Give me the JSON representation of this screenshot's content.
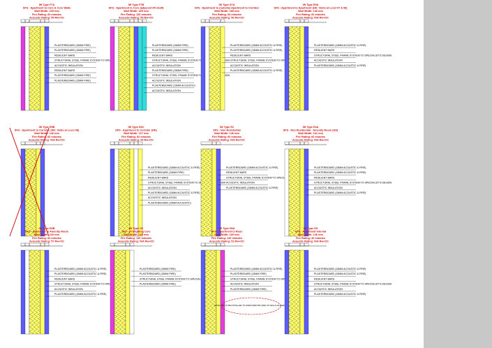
{
  "sheet": {
    "panels": [
      {
        "title": [
          "IW Type F7A",
          "SFS - Apartment to Core & Core Walls",
          "Wall Width: 225 mm",
          "Fire Rating: 60 minutes",
          "Acoustic Rating: 55 Rw+Ctr"
        ],
        "layers": [
          "#e33be3",
          "#ffffff",
          "#ffff66",
          "#ffff66",
          "#5b5bff"
        ],
        "specs": [
          "PLASTERBOARD (15MM FIRE)",
          "PLASTERBOARD (15MM FIRE)",
          "RESILIENT BARS",
          "STRUCTURAL STEEL FRAME SYSTEM TO SPECIALIST'S DESIGN",
          "ACOUSTIC INSULATION",
          "RESILIENT BARS",
          "PLASTERBOARD (15MM FIRE)",
          "PLASTERBOARD (15MM FIRE)"
        ]
      },
      {
        "title": [
          "IW Type F7B",
          "SFS - Apartment to Core (adjacent lift shaft)",
          "Wall Width: 325 mm",
          "Fire Rating: 120 minutes",
          "Acoustic Rating: 55 Rw+Ctr"
        ],
        "layers": [
          "#e33be3",
          "#ffffff",
          "#ffff66",
          "#ffff66",
          "#5b5bff",
          "#33dddd",
          "#33dddd"
        ],
        "specs": [
          "PLASTERBOARD (15MM FIRE)",
          "PLASTERBOARD (15MM FIRE)",
          "RESILIENT BARS",
          "STRUCTURAL STEEL FRAME SYSTEM TO SPECIALIST'S DESIGN",
          "ACOUSTIC INSULATION",
          "PLASTERBOARD (15MM FIRE)",
          "STRUCTURAL STEEL FRAME SYSTEM TO SPECIALIST'S DESIGN",
          "ACOUSTIC INSULATION",
          "PLASTERBOARD (15MM ACOUSTIC)",
          "ACOUSTIC INSULATION"
        ]
      },
      {
        "title": [
          "IW Type D7A",
          "SFS - Apartment to (outside) Apartment to Corridor",
          "Wall Width: 185 mm",
          "Fire Rating: 60 minutes",
          "Acoustic Rating: 56 Rw+Ctr"
        ],
        "layers": [
          "#5b5bff",
          "#ffffff",
          "#ffff66",
          "#ffff66"
        ],
        "specs": [
          "PLASTERBOARD (15MM ACOUSTIC & FIRE)",
          "PLASTERBOARD (15MM ACOUSTIC & FIRE)",
          "RESILIENT BARS",
          "STRUCTURAL STEEL FRAME SYSTEM TO SPECIALIST'S DESIGN",
          "ACOUSTIC INSULATION",
          "PLASTERBOARD (15MM ACOUSTIC & FIRE)"
        ]
      },
      {
        "title": [
          "IW Type E5A",
          "SFS - Apartment to Apartment (HD: Voids at Level 07 & 08)",
          "Wall Width: 146 mm",
          "Fire Rating: 60 minutes",
          "Acoustic Rating: N/A Rw+Ctr"
        ],
        "layers": [
          "#5b5bff",
          "#ffff66",
          "#ffff66",
          "#5b5bff"
        ],
        "specs": [
          "PLASTERBOARD (15MM ACOUSTIC & FIRE)",
          "RESILIENT BARS",
          "STRUCTURAL STEEL FRAME SYSTEM TO SPECIALIST'S DESIGN",
          "ACOUSTIC INSULATION",
          "PLASTERBOARD (15MM ACOUSTIC & FIRE)"
        ]
      },
      {
        "title": [
          "IW Type E5B",
          "SFS - Apartment to Corridor (HD: Voids at Level 08)",
          "Wall Width: 146 mm",
          "Fire Rating: 60 minutes",
          "Acoustic Rating: N/A Rw+Ctr"
        ],
        "layers": [
          "#5b5bff",
          "#ffff66",
          "#ffff66",
          "#5b5bff"
        ],
        "specs": [],
        "struck": true
      },
      {
        "title": [
          "IW Type D6C",
          "SFS - Apartment to Corridor (HD)",
          "Wall Width: 217 mm",
          "Fire Rating: 60 minutes",
          "Acoustic Rating: 54 Rw+Ctr"
        ],
        "layers": [
          "#5b5bff",
          "#ffffff",
          "#ffff66",
          "#ffff66",
          "#ffffff",
          "#ffff66"
        ],
        "specs": [
          "PLASTERBOARD (15MM ACOUSTIC & FIRE)",
          "PLASTERBOARD (15MM FIRE)",
          "RESILIENT BARS",
          "STRUCTURAL STEEL FRAME SYSTEM TO SPECIALIST'S DESIGN",
          "ACOUSTIC INSULATION",
          "PLASTERBOARD (15MM ACOUSTIC & FIRE)",
          "ACOUSTIC INSULATION",
          "PLASTERBOARD (15MM ACOUSTIC)"
        ]
      },
      {
        "title": [
          "IW Type E2",
          "SFS - Non Residential",
          "Wall Width: 146 mm",
          "Fire Rating: 60 minutes",
          "Acoustic Rating: N/A Rw+Ctr"
        ],
        "layers": [
          "#ffff66",
          "#ffff66",
          "#5b5bff"
        ],
        "specs": [
          "PLASTERBOARD (15MM ACOUSTIC & FIRE)",
          "RESILIENT BARS",
          "STRUCTURAL STEEL FRAME SYSTEM TO SPECIALIST'S DESIGN",
          "ACOUSTIC INSULATION",
          "PLASTERBOARD (15MM ACOUSTIC & FIRE)"
        ]
      },
      {
        "title": [
          "IW Type E4A",
          "SFS - Non Residential - Amenity Room (UH)",
          "Wall Width: 161 mm",
          "Fire Rating: 60 minutes",
          "Acoustic Rating: N/A Rw+Ctr"
        ],
        "layers": [
          "#ffffff",
          "#ffff66",
          "#ffff66",
          "#5b5bff"
        ],
        "specs": [
          "PLASTERBOARD (15MM ACOUSTIC & FIRE)",
          "PLASTERBOARD (15MM ACOUSTIC & FIRE)",
          "RESILIENT BARS",
          "STRUCTURAL STEEL FRAME SYSTEM TO SPECIALIST'S DESIGN",
          "ACOUSTIC INSULATION",
          "PLASTERBOARD (15MM ACOUSTIC & FIRE)"
        ]
      },
      {
        "title": [
          "IW Type D6B",
          "SFS - Apartment to Amenity Room",
          "Wall Width: 225 mm",
          "Fire Rating: 60 minutes",
          "Acoustic Rating: 57 Rw+Ctr"
        ],
        "layers": [
          "#5b5bff",
          "#ffffff",
          "#ffff66",
          "#ffff66",
          "#5b5bff"
        ],
        "specs": [
          "PLASTERBOARD (15MM ACOUSTIC & FIRE)",
          "PLASTERBOARD (15MM ACOUSTIC & FIRE)",
          "RESILIENT BARS",
          "STRUCTURAL STEEL FRAME SYSTEM TO SPECIALIST'S DESIGN",
          "ACOUSTIC INSULATION",
          "PLASTERBOARD (15MM ACOUSTIC & FIRE)"
        ]
      },
      {
        "title": [
          "IW Type G6",
          "SFS - Firefighting Core",
          "Wall Width: 165 mm",
          "Fire Rating: 120 minutes",
          "Acoustic Rating: N/A Rw+Ctr"
        ],
        "layers": [
          "#e33be3",
          "#ffff66",
          "#ffff66",
          "#ffffff"
        ],
        "specs": [
          "PLASTERBOARD (15MM FIRE)",
          "PLASTERBOARD (15MM FIRE)",
          "STRUCTURAL STEEL FRAME SYSTEM TO SPECIALIST'S DESIGN",
          "PLASTERBOARD (15MM FIRE)"
        ]
      },
      {
        "title": [
          "IW Type H6A",
          "SFS - Apartment to Riser",
          "Wall Width: 165 mm",
          "Fire Rating: 120 minutes",
          "Acoustic Rating: 51 Rw+Ctr"
        ],
        "layers": [
          "#5b5bff",
          "#ffff66",
          "#ffff66",
          "#e33be3"
        ],
        "specs": [
          "PLASTERBOARD (15MM ACOUSTIC & FIRE)",
          "PLASTERBOARD (15MM FIRE)",
          "STRUCTURAL STEEL FRAME SYSTEM TO SPECIALIST'S DESIGN",
          "ACOUSTIC INSULATION",
          "PLASTERBOARD (15MM FIRE)"
        ],
        "note": "NOTE: VCL TO BE INSTALLED TO WARM (RED BS) SIDE OF WALLS AS SEEN AS"
      },
      {
        "title": [
          "IW Type D5",
          "SFS - Apartment Internal",
          "Wall Width: 146 mm",
          "Fire Rating: 30 minutes",
          "Acoustic Rating: N/A Rw+Ctr"
        ],
        "layers": [
          "#5b5bff",
          "#ffff66",
          "#ffff66",
          "#5b5bff"
        ],
        "specs": [
          "PLASTERBOARD (15MM ACOUSTIC & FIRE)",
          "PLASTERBOARD (15MM ACOUSTIC & FIRE)",
          "RESILIENT BARS",
          "STRUCTURAL STEEL FRAME SYSTEM TO SPECIALIST'S DESIGN",
          "ACOUSTIC INSULATION",
          "PLASTERBOARD (15MM ACOUSTIC & FIRE)"
        ]
      }
    ]
  }
}
